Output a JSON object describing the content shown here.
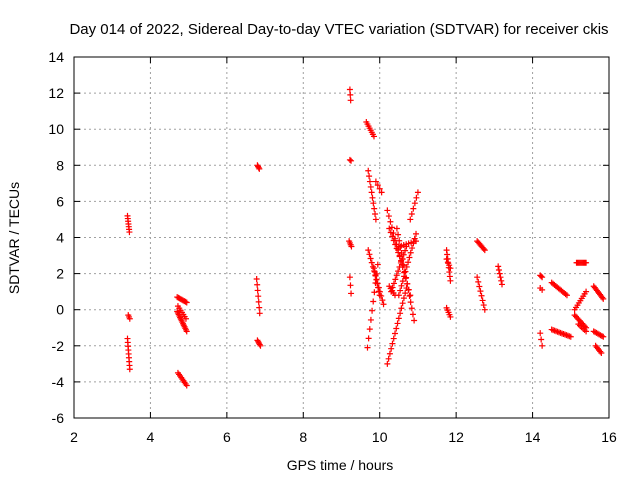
{
  "chart_data": {
    "type": "scatter",
    "title": "Day 014 of 2022, Sidereal Day-to-day VTEC variation (SDTVAR) for receiver ckis",
    "xlabel": "GPS time / hours",
    "ylabel": "SDTVAR / TECUs",
    "xlim": [
      2,
      16
    ],
    "ylim": [
      -6,
      14
    ],
    "xticks": [
      2,
      4,
      6,
      8,
      10,
      12,
      14,
      16
    ],
    "yticks": [
      -6,
      -4,
      -2,
      0,
      2,
      4,
      6,
      8,
      10,
      12,
      14
    ],
    "grid": true,
    "marker": "plus",
    "marker_color": "#ff0000",
    "series": [
      {
        "name": "SDTVAR",
        "segments": [
          {
            "x0": 3.4,
            "x1": 3.45,
            "y0": 5.2,
            "y1": 4.3,
            "n": 7
          },
          {
            "x0": 3.42,
            "x1": 3.46,
            "y0": -0.3,
            "y1": -0.5,
            "n": 3
          },
          {
            "x0": 3.4,
            "x1": 3.46,
            "y0": -1.6,
            "y1": -3.3,
            "n": 9
          },
          {
            "x0": 4.7,
            "x1": 4.95,
            "y0": 0.7,
            "y1": 0.4,
            "n": 9
          },
          {
            "x0": 4.7,
            "x1": 4.95,
            "y0": -0.1,
            "y1": -1.2,
            "n": 14
          },
          {
            "x0": 4.72,
            "x1": 4.93,
            "y0": 0.2,
            "y1": -0.5,
            "n": 7
          },
          {
            "x0": 4.72,
            "x1": 4.95,
            "y0": -3.5,
            "y1": -4.2,
            "n": 9
          },
          {
            "x0": 6.8,
            "x1": 6.85,
            "y0": 8.0,
            "y1": 7.8,
            "n": 4
          },
          {
            "x0": 6.78,
            "x1": 6.86,
            "y0": 1.7,
            "y1": -0.2,
            "n": 7
          },
          {
            "x0": 6.8,
            "x1": 6.88,
            "y0": -1.7,
            "y1": -2.0,
            "n": 5
          },
          {
            "x0": 9.22,
            "x1": 9.24,
            "y0": 12.2,
            "y1": 11.6,
            "n": 3
          },
          {
            "x0": 9.22,
            "x1": 9.25,
            "y0": 8.3,
            "y1": 8.25,
            "n": 2
          },
          {
            "x0": 9.2,
            "x1": 9.26,
            "y0": 3.8,
            "y1": 3.5,
            "n": 4
          },
          {
            "x0": 9.22,
            "x1": 9.25,
            "y0": 1.8,
            "y1": 0.9,
            "n": 3
          },
          {
            "x0": 9.65,
            "x1": 9.85,
            "y0": 10.4,
            "y1": 9.6,
            "n": 8
          },
          {
            "x0": 9.7,
            "x1": 9.9,
            "y0": 7.7,
            "y1": 5.0,
            "n": 10
          },
          {
            "x0": 9.9,
            "x1": 10.05,
            "y0": 7.1,
            "y1": 6.5,
            "n": 4
          },
          {
            "x0": 9.7,
            "x1": 10.1,
            "y0": 3.3,
            "y1": 0.3,
            "n": 14
          },
          {
            "x0": 9.68,
            "x1": 9.95,
            "y0": -2.1,
            "y1": 2.5,
            "n": 10
          },
          {
            "x0": 9.85,
            "x1": 10.0,
            "y0": 2.3,
            "y1": 0.8,
            "n": 8
          },
          {
            "x0": 10.2,
            "x1": 10.8,
            "y0": 5.5,
            "y1": 0.8,
            "n": 16
          },
          {
            "x0": 10.25,
            "x1": 10.6,
            "y0": 4.5,
            "y1": 2.5,
            "n": 10
          },
          {
            "x0": 10.45,
            "x1": 10.9,
            "y0": 4.5,
            "y1": -0.6,
            "n": 16
          },
          {
            "x0": 10.25,
            "x1": 10.4,
            "y0": 1.3,
            "y1": 0.8,
            "n": 5
          },
          {
            "x0": 10.3,
            "x1": 10.7,
            "y0": 1.0,
            "y1": 3.5,
            "n": 12
          },
          {
            "x0": 10.2,
            "x1": 10.7,
            "y0": -3.0,
            "y1": 1.2,
            "n": 16
          },
          {
            "x0": 10.5,
            "x1": 10.95,
            "y0": 0.8,
            "y1": 4.2,
            "n": 14
          },
          {
            "x0": 10.8,
            "x1": 11.0,
            "y0": 5.0,
            "y1": 6.5,
            "n": 6
          },
          {
            "x0": 10.5,
            "x1": 10.95,
            "y0": 3.5,
            "y1": 3.8,
            "n": 8
          },
          {
            "x0": 11.75,
            "x1": 11.85,
            "y0": 3.3,
            "y1": 1.6,
            "n": 8
          },
          {
            "x0": 11.75,
            "x1": 11.85,
            "y0": 2.8,
            "y1": 2.3,
            "n": 4
          },
          {
            "x0": 11.75,
            "x1": 11.85,
            "y0": 0.1,
            "y1": -0.4,
            "n": 5
          },
          {
            "x0": 12.55,
            "x1": 12.75,
            "y0": 3.8,
            "y1": 3.3,
            "n": 8
          },
          {
            "x0": 12.55,
            "x1": 12.75,
            "y0": 1.8,
            "y1": 0.0,
            "n": 8
          },
          {
            "x0": 13.1,
            "x1": 13.2,
            "y0": 2.4,
            "y1": 1.4,
            "n": 6
          },
          {
            "x0": 14.2,
            "x1": 14.25,
            "y0": 1.9,
            "y1": 1.8,
            "n": 3
          },
          {
            "x0": 14.2,
            "x1": 14.25,
            "y0": 1.2,
            "y1": 1.1,
            "n": 2
          },
          {
            "x0": 14.2,
            "x1": 14.25,
            "y0": -1.3,
            "y1": -2.0,
            "n": 3
          },
          {
            "x0": 14.5,
            "x1": 14.9,
            "y0": 1.5,
            "y1": 0.8,
            "n": 12
          },
          {
            "x0": 14.5,
            "x1": 15.0,
            "y0": -1.1,
            "y1": -1.5,
            "n": 14
          },
          {
            "x0": 15.15,
            "x1": 15.4,
            "y0": 2.6,
            "y1": 2.6,
            "n": 10
          },
          {
            "x0": 15.1,
            "x1": 15.4,
            "y0": 0.0,
            "y1": 1.0,
            "n": 9
          },
          {
            "x0": 15.1,
            "x1": 15.4,
            "y0": -0.3,
            "y1": -1.0,
            "n": 10
          },
          {
            "x0": 15.2,
            "x1": 15.4,
            "y0": -0.8,
            "y1": -1.2,
            "n": 6
          },
          {
            "x0": 15.6,
            "x1": 15.85,
            "y0": 1.3,
            "y1": 0.6,
            "n": 10
          },
          {
            "x0": 15.6,
            "x1": 15.85,
            "y0": -1.2,
            "y1": -1.5,
            "n": 8
          },
          {
            "x0": 15.65,
            "x1": 15.8,
            "y0": -2.0,
            "y1": -2.4,
            "n": 6
          }
        ]
      }
    ]
  }
}
